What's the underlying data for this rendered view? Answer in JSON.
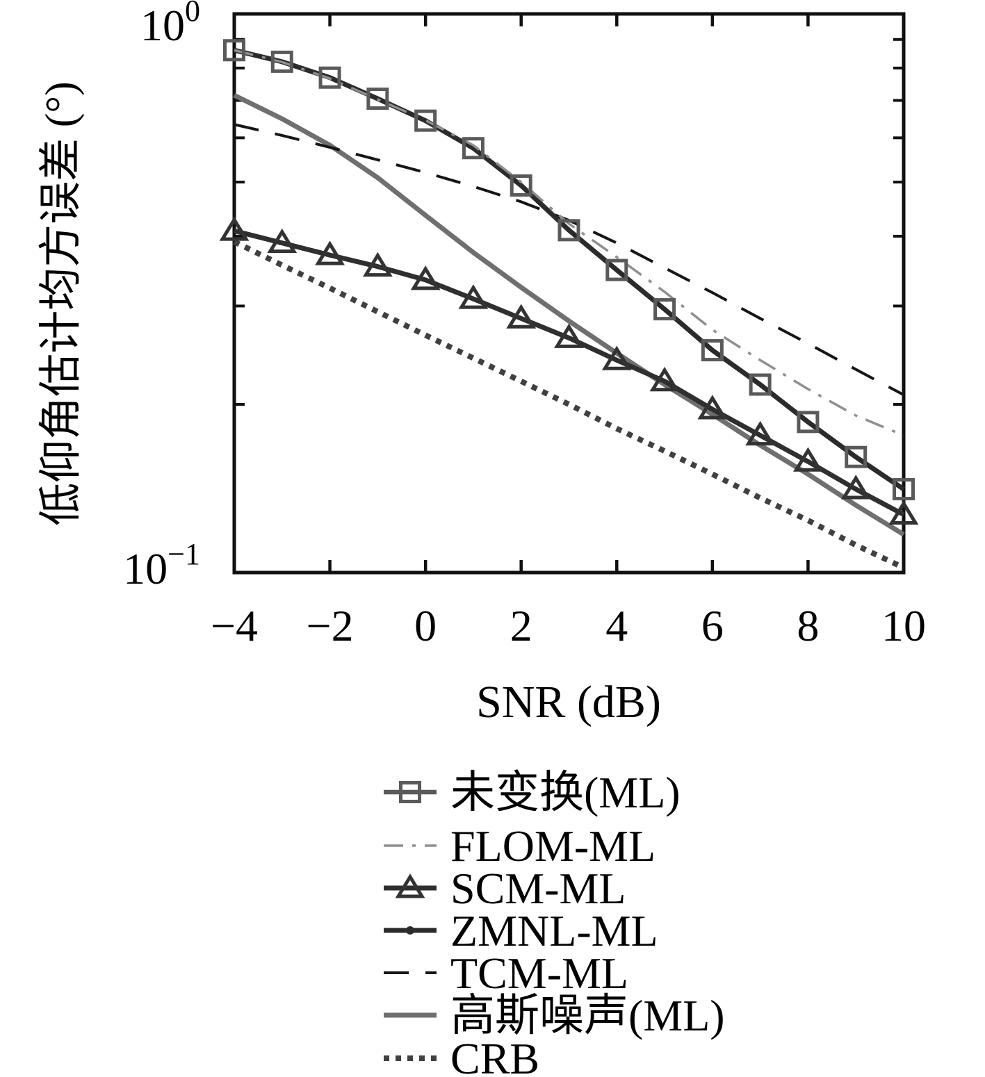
{
  "figure": {
    "background": "#ffffff",
    "axis_color": "#111111"
  },
  "chart_data": {
    "type": "line",
    "title": "",
    "xlabel": "SNR (dB)",
    "ylabel": "低仰角估计均方误差 (°)",
    "xlim": [
      -4,
      10
    ],
    "ylim": [
      0.1,
      1.0
    ],
    "yscale": "log",
    "xscale": "linear",
    "grid": false,
    "legend_position": "below-plot",
    "x_ticks": [
      -4,
      -2,
      0,
      2,
      4,
      6,
      8,
      10
    ],
    "x_tick_labels": [
      "−4",
      "−2",
      "0",
      "2",
      "4",
      "6",
      "8",
      "10"
    ],
    "y_tick_labels": [
      {
        "base": "10",
        "exp": "0",
        "value": 1.0
      },
      {
        "base": "10",
        "exp": "−1",
        "value": 0.1
      }
    ],
    "y_minor_ticks": [
      0.9,
      0.8,
      0.7,
      0.6,
      0.5,
      0.4,
      0.3,
      0.2
    ],
    "x": [
      -4,
      -3,
      -2,
      -1,
      0,
      1,
      2,
      3,
      4,
      5,
      6,
      7,
      8,
      9,
      10
    ],
    "series": [
      {
        "name": "未变换(ML)",
        "values": [
          0.861,
          0.821,
          0.769,
          0.705,
          0.644,
          0.575,
          0.493,
          0.41,
          0.348,
          0.296,
          0.25,
          0.217,
          0.186,
          0.161,
          0.141
        ],
        "note": "curve coincides with ZMNL-ML; drawn as open square markers on the shared dark line",
        "style": {
          "color": "#5a5a5a",
          "width": 6.5,
          "dash": "solid",
          "marker": "square",
          "marker_color": "#5a5a5a",
          "line_on_plot": false
        }
      },
      {
        "name": "FLOM-ML",
        "values": [
          0.861,
          0.82,
          0.766,
          0.703,
          0.645,
          0.582,
          0.5,
          0.421,
          0.367,
          0.318,
          0.272,
          0.24,
          0.213,
          0.191,
          0.176
        ],
        "style": {
          "color": "#8f8f8f",
          "width": 3.5,
          "dash": "dashdot",
          "marker": "none",
          "line_on_plot": true
        }
      },
      {
        "name": "SCM-ML",
        "values": [
          0.409,
          0.389,
          0.37,
          0.353,
          0.334,
          0.309,
          0.285,
          0.263,
          0.24,
          0.22,
          0.196,
          0.176,
          0.158,
          0.141,
          0.127
        ],
        "style": {
          "color": "#2f2f2f",
          "width": 7,
          "dash": "solid",
          "marker": "triangle",
          "marker_color": "#333333",
          "line_on_plot": true
        }
      },
      {
        "name": "ZMNL-ML",
        "values": [
          0.861,
          0.821,
          0.769,
          0.705,
          0.644,
          0.575,
          0.493,
          0.41,
          0.348,
          0.296,
          0.25,
          0.217,
          0.186,
          0.161,
          0.141
        ],
        "style": {
          "color": "#2b2b2b",
          "width": 7,
          "dash": "solid",
          "marker": "dot-legend-only",
          "marker_color": "#2b2b2b",
          "line_on_plot": true
        }
      },
      {
        "name": "TCM-ML",
        "values": [
          0.634,
          0.606,
          0.577,
          0.548,
          0.52,
          0.491,
          0.461,
          0.427,
          0.389,
          0.351,
          0.317,
          0.285,
          0.257,
          0.231,
          0.208
        ],
        "style": {
          "color": "#161616",
          "width": 4,
          "dash": "dashed",
          "marker": "none",
          "line_on_plot": true
        }
      },
      {
        "name": "高斯噪声(ML)",
        "values": [
          0.715,
          0.649,
          0.582,
          0.509,
          0.436,
          0.374,
          0.324,
          0.282,
          0.247,
          0.217,
          0.192,
          0.169,
          0.15,
          0.132,
          0.117
        ],
        "style": {
          "color": "#6f6f6f",
          "width": 7,
          "dash": "solid",
          "marker": "none",
          "line_on_plot": true
        }
      },
      {
        "name": "CRB",
        "values": [
          0.391,
          0.355,
          0.323,
          0.293,
          0.266,
          0.242,
          0.22,
          0.2,
          0.181,
          0.165,
          0.15,
          0.136,
          0.124,
          0.112,
          0.102
        ],
        "style": {
          "color": "#404040",
          "width": 8,
          "dash": "dotted",
          "marker": "none",
          "line_on_plot": true
        }
      }
    ]
  }
}
